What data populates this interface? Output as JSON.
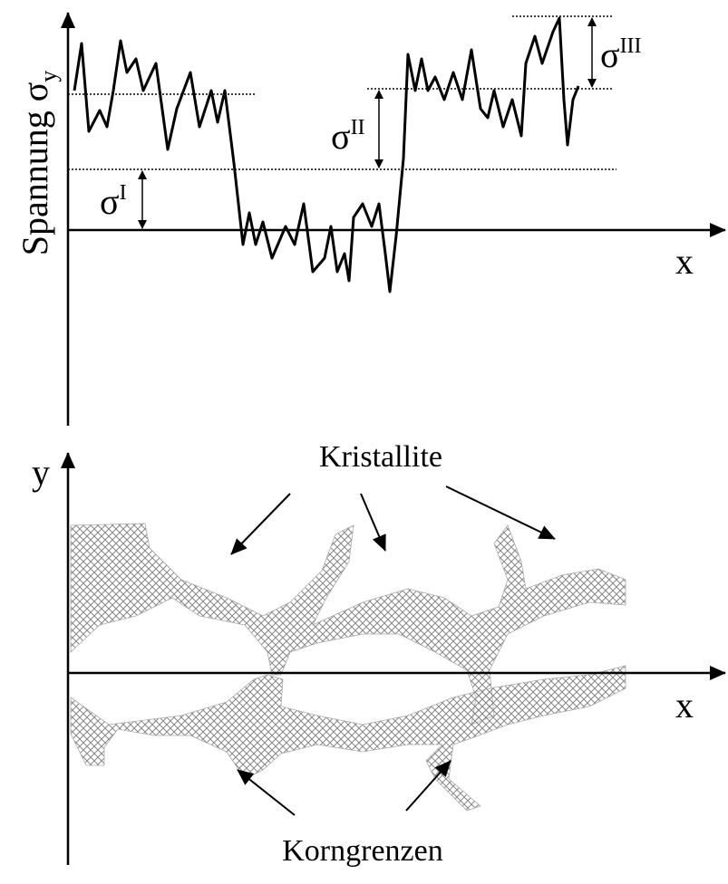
{
  "top_diagram": {
    "y_axis_label": "Spannung σ",
    "y_axis_label_sub": "y",
    "x_axis_label": "x",
    "annotations": [
      {
        "symbol": "σ",
        "superscript": "I"
      },
      {
        "symbol": "σ",
        "superscript": "II"
      },
      {
        "symbol": "σ",
        "superscript": "III"
      }
    ]
  },
  "bottom_diagram": {
    "y_axis_label": "y",
    "x_axis_label": "x",
    "crystallites_label": "Kristallite",
    "grain_boundaries_label": "Korngrenzen"
  }
}
